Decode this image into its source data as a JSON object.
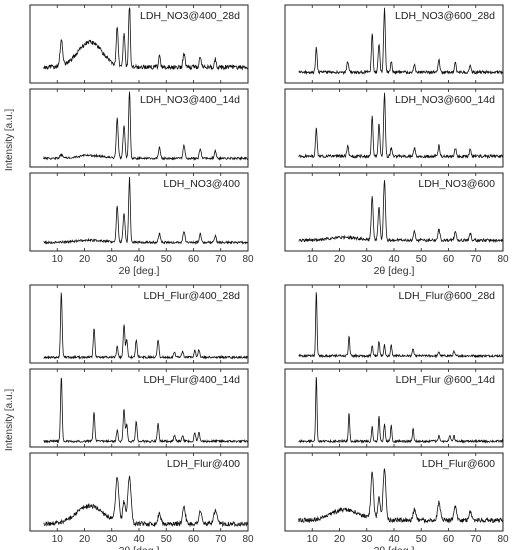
{
  "y_axis_label": "Intensity [a.u.]",
  "x_axis_label": "2θ [deg.]",
  "chart_data": [
    {
      "type": "line",
      "group": "left_top",
      "title": "LDH_NO3@400_28d",
      "xlim": [
        0,
        80
      ],
      "x_ticks": [
        10,
        20,
        30,
        40,
        50,
        60,
        70,
        80
      ],
      "show_x_ticks": false,
      "base": 0.22,
      "noise": 0.03,
      "seed": 1,
      "humps": [
        {
          "c": 22,
          "w": 4.5,
          "h": 0.35
        }
      ],
      "peaks": [
        {
          "x": 11.5,
          "h": 0.35,
          "w": 0.5
        },
        {
          "x": 32,
          "h": 0.55,
          "w": 0.35
        },
        {
          "x": 34.5,
          "h": 0.45,
          "w": 0.35
        },
        {
          "x": 36.5,
          "h": 0.9,
          "w": 0.3
        },
        {
          "x": 47.5,
          "h": 0.15,
          "w": 0.35
        },
        {
          "x": 56.5,
          "h": 0.2,
          "w": 0.35
        },
        {
          "x": 62.5,
          "h": 0.15,
          "w": 0.35
        },
        {
          "x": 68,
          "h": 0.12,
          "w": 0.35
        }
      ]
    },
    {
      "type": "line",
      "group": "left_top",
      "title": "LDH_NO3@400_14d",
      "xlim": [
        0,
        80
      ],
      "x_ticks": [
        10,
        20,
        30,
        40,
        50,
        60,
        70,
        80
      ],
      "show_x_ticks": false,
      "base": 0.12,
      "noise": 0.015,
      "seed": 2,
      "humps": [
        {
          "c": 22,
          "w": 5,
          "h": 0.04
        }
      ],
      "peaks": [
        {
          "x": 11.5,
          "h": 0.05,
          "w": 0.5
        },
        {
          "x": 32,
          "h": 0.55,
          "w": 0.35
        },
        {
          "x": 34.5,
          "h": 0.45,
          "w": 0.35
        },
        {
          "x": 36.5,
          "h": 0.95,
          "w": 0.3
        },
        {
          "x": 47.5,
          "h": 0.15,
          "w": 0.35
        },
        {
          "x": 56.5,
          "h": 0.18,
          "w": 0.35
        },
        {
          "x": 62.5,
          "h": 0.14,
          "w": 0.35
        },
        {
          "x": 68,
          "h": 0.1,
          "w": 0.35
        }
      ]
    },
    {
      "type": "line",
      "group": "left_top",
      "title": "LDH_NO3@400",
      "xlim": [
        0,
        80
      ],
      "x_ticks": [
        10,
        20,
        30,
        40,
        50,
        60,
        70,
        80
      ],
      "show_x_ticks": true,
      "base": 0.12,
      "noise": 0.015,
      "seed": 3,
      "humps": [
        {
          "c": 22,
          "w": 5,
          "h": 0.03
        }
      ],
      "peaks": [
        {
          "x": 32,
          "h": 0.5,
          "w": 0.35
        },
        {
          "x": 34.5,
          "h": 0.4,
          "w": 0.35
        },
        {
          "x": 36.5,
          "h": 0.9,
          "w": 0.3
        },
        {
          "x": 47.5,
          "h": 0.12,
          "w": 0.35
        },
        {
          "x": 56.5,
          "h": 0.15,
          "w": 0.35
        },
        {
          "x": 62.5,
          "h": 0.12,
          "w": 0.35
        },
        {
          "x": 68,
          "h": 0.09,
          "w": 0.35
        }
      ]
    },
    {
      "type": "line",
      "group": "right_top",
      "title": "LDH_NO3@600_28d",
      "xlim": [
        0,
        80
      ],
      "x_ticks": [
        10,
        20,
        30,
        40,
        50,
        60,
        70,
        80
      ],
      "show_x_ticks": false,
      "base": 0.15,
      "noise": 0.02,
      "seed": 4,
      "humps": [],
      "peaks": [
        {
          "x": 11.5,
          "h": 0.35,
          "w": 0.3
        },
        {
          "x": 23,
          "h": 0.15,
          "w": 0.3
        },
        {
          "x": 32,
          "h": 0.55,
          "w": 0.3
        },
        {
          "x": 34.5,
          "h": 0.4,
          "w": 0.3
        },
        {
          "x": 36.5,
          "h": 0.9,
          "w": 0.3
        },
        {
          "x": 39,
          "h": 0.15,
          "w": 0.3
        },
        {
          "x": 47.5,
          "h": 0.12,
          "w": 0.3
        },
        {
          "x": 56.5,
          "h": 0.18,
          "w": 0.3
        },
        {
          "x": 62.5,
          "h": 0.14,
          "w": 0.3
        },
        {
          "x": 68,
          "h": 0.1,
          "w": 0.3
        }
      ]
    },
    {
      "type": "line",
      "group": "right_top",
      "title": "LDH_NO3@600_14d",
      "xlim": [
        0,
        80
      ],
      "x_ticks": [
        10,
        20,
        30,
        40,
        50,
        60,
        70,
        80
      ],
      "show_x_ticks": false,
      "base": 0.15,
      "noise": 0.02,
      "seed": 5,
      "humps": [],
      "peaks": [
        {
          "x": 11.5,
          "h": 0.4,
          "w": 0.3
        },
        {
          "x": 23,
          "h": 0.15,
          "w": 0.3
        },
        {
          "x": 32,
          "h": 0.55,
          "w": 0.3
        },
        {
          "x": 34.5,
          "h": 0.45,
          "w": 0.3
        },
        {
          "x": 36.5,
          "h": 0.9,
          "w": 0.3
        },
        {
          "x": 39,
          "h": 0.12,
          "w": 0.3
        },
        {
          "x": 47.5,
          "h": 0.12,
          "w": 0.3
        },
        {
          "x": 56.5,
          "h": 0.16,
          "w": 0.3
        },
        {
          "x": 62.5,
          "h": 0.12,
          "w": 0.3
        },
        {
          "x": 68,
          "h": 0.1,
          "w": 0.3
        }
      ]
    },
    {
      "type": "line",
      "group": "right_top",
      "title": "LDH_NO3@600",
      "xlim": [
        0,
        80
      ],
      "x_ticks": [
        10,
        20,
        30,
        40,
        50,
        60,
        70,
        80
      ],
      "show_x_ticks": true,
      "base": 0.15,
      "noise": 0.02,
      "seed": 6,
      "humps": [
        {
          "c": 22,
          "w": 5,
          "h": 0.04
        }
      ],
      "peaks": [
        {
          "x": 32,
          "h": 0.6,
          "w": 0.35
        },
        {
          "x": 34.5,
          "h": 0.45,
          "w": 0.35
        },
        {
          "x": 36.5,
          "h": 0.85,
          "w": 0.35
        },
        {
          "x": 47.5,
          "h": 0.12,
          "w": 0.35
        },
        {
          "x": 56.5,
          "h": 0.15,
          "w": 0.35
        },
        {
          "x": 62.5,
          "h": 0.12,
          "w": 0.35
        },
        {
          "x": 68,
          "h": 0.1,
          "w": 0.35
        }
      ]
    },
    {
      "type": "line",
      "group": "left_bottom",
      "title": "LDH_Flur@400_28d",
      "xlim": [
        0,
        80
      ],
      "x_ticks": [
        10,
        20,
        30,
        40,
        50,
        60,
        70,
        80
      ],
      "show_x_ticks": false,
      "base": 0.08,
      "noise": 0.015,
      "seed": 7,
      "humps": [],
      "peaks": [
        {
          "x": 11.5,
          "h": 0.9,
          "w": 0.3
        },
        {
          "x": 23.5,
          "h": 0.4,
          "w": 0.3
        },
        {
          "x": 32,
          "h": 0.15,
          "w": 0.3
        },
        {
          "x": 34.5,
          "h": 0.45,
          "w": 0.3
        },
        {
          "x": 35.5,
          "h": 0.25,
          "w": 0.3
        },
        {
          "x": 39,
          "h": 0.25,
          "w": 0.3
        },
        {
          "x": 47,
          "h": 0.25,
          "w": 0.3
        },
        {
          "x": 53,
          "h": 0.08,
          "w": 0.3
        },
        {
          "x": 56,
          "h": 0.08,
          "w": 0.3
        },
        {
          "x": 60.5,
          "h": 0.1,
          "w": 0.3
        },
        {
          "x": 62,
          "h": 0.1,
          "w": 0.3
        }
      ]
    },
    {
      "type": "line",
      "group": "left_bottom",
      "title": "LDH_Flur@400_14d",
      "xlim": [
        0,
        80
      ],
      "x_ticks": [
        10,
        20,
        30,
        40,
        50,
        60,
        70,
        80
      ],
      "show_x_ticks": false,
      "base": 0.08,
      "noise": 0.015,
      "seed": 8,
      "humps": [],
      "peaks": [
        {
          "x": 11.5,
          "h": 0.9,
          "w": 0.3
        },
        {
          "x": 23.5,
          "h": 0.4,
          "w": 0.3
        },
        {
          "x": 32,
          "h": 0.15,
          "w": 0.3
        },
        {
          "x": 34.5,
          "h": 0.45,
          "w": 0.3
        },
        {
          "x": 35.5,
          "h": 0.25,
          "w": 0.3
        },
        {
          "x": 39,
          "h": 0.28,
          "w": 0.3
        },
        {
          "x": 47,
          "h": 0.25,
          "w": 0.3
        },
        {
          "x": 53,
          "h": 0.08,
          "w": 0.3
        },
        {
          "x": 56,
          "h": 0.08,
          "w": 0.3
        },
        {
          "x": 60.5,
          "h": 0.12,
          "w": 0.3
        },
        {
          "x": 62,
          "h": 0.12,
          "w": 0.3
        }
      ]
    },
    {
      "type": "line",
      "group": "left_bottom",
      "title": "LDH_Flur@400",
      "xlim": [
        0,
        80
      ],
      "x_ticks": [
        10,
        20,
        30,
        40,
        50,
        60,
        70,
        80
      ],
      "show_x_ticks": true,
      "base": 0.1,
      "noise": 0.03,
      "seed": 9,
      "humps": [
        {
          "c": 22,
          "w": 5,
          "h": 0.25
        }
      ],
      "peaks": [
        {
          "x": 32,
          "h": 0.6,
          "w": 0.6
        },
        {
          "x": 34.5,
          "h": 0.3,
          "w": 0.5
        },
        {
          "x": 36.5,
          "h": 0.65,
          "w": 0.6
        },
        {
          "x": 47.5,
          "h": 0.15,
          "w": 0.5
        },
        {
          "x": 56.5,
          "h": 0.25,
          "w": 0.5
        },
        {
          "x": 62.5,
          "h": 0.18,
          "w": 0.5
        },
        {
          "x": 68,
          "h": 0.18,
          "w": 0.6
        }
      ]
    },
    {
      "type": "line",
      "group": "right_bottom",
      "title": "LDH_Flur@600_28d",
      "xlim": [
        0,
        80
      ],
      "x_ticks": [
        10,
        20,
        30,
        40,
        50,
        60,
        70,
        80
      ],
      "show_x_ticks": false,
      "base": 0.1,
      "noise": 0.015,
      "seed": 10,
      "humps": [],
      "peaks": [
        {
          "x": 11.5,
          "h": 0.9,
          "w": 0.25
        },
        {
          "x": 23.5,
          "h": 0.28,
          "w": 0.25
        },
        {
          "x": 32,
          "h": 0.15,
          "w": 0.25
        },
        {
          "x": 34.5,
          "h": 0.2,
          "w": 0.25
        },
        {
          "x": 36.5,
          "h": 0.15,
          "w": 0.25
        },
        {
          "x": 39,
          "h": 0.15,
          "w": 0.25
        },
        {
          "x": 47,
          "h": 0.1,
          "w": 0.25
        },
        {
          "x": 56.5,
          "h": 0.06,
          "w": 0.25
        },
        {
          "x": 62,
          "h": 0.06,
          "w": 0.25
        }
      ]
    },
    {
      "type": "line",
      "group": "right_bottom",
      "title": "LDH_Flur @600_14d",
      "xlim": [
        0,
        80
      ],
      "x_ticks": [
        10,
        20,
        30,
        40,
        50,
        60,
        70,
        80
      ],
      "show_x_ticks": false,
      "base": 0.08,
      "noise": 0.015,
      "seed": 11,
      "humps": [],
      "peaks": [
        {
          "x": 11.5,
          "h": 0.9,
          "w": 0.25
        },
        {
          "x": 23.5,
          "h": 0.4,
          "w": 0.25
        },
        {
          "x": 32,
          "h": 0.2,
          "w": 0.25
        },
        {
          "x": 34.5,
          "h": 0.35,
          "w": 0.25
        },
        {
          "x": 36.5,
          "h": 0.25,
          "w": 0.25
        },
        {
          "x": 39,
          "h": 0.22,
          "w": 0.25
        },
        {
          "x": 47,
          "h": 0.18,
          "w": 0.25
        },
        {
          "x": 56.5,
          "h": 0.08,
          "w": 0.25
        },
        {
          "x": 60.5,
          "h": 0.08,
          "w": 0.25
        },
        {
          "x": 62,
          "h": 0.08,
          "w": 0.25
        }
      ]
    },
    {
      "type": "line",
      "group": "right_bottom",
      "title": "LDH_Flur@600",
      "xlim": [
        0,
        80
      ],
      "x_ticks": [
        10,
        20,
        30,
        40,
        50,
        60,
        70,
        80
      ],
      "show_x_ticks": true,
      "base": 0.15,
      "noise": 0.03,
      "seed": 12,
      "humps": [
        {
          "c": 22,
          "w": 5,
          "h": 0.15
        }
      ],
      "peaks": [
        {
          "x": 32,
          "h": 0.65,
          "w": 0.5
        },
        {
          "x": 34.5,
          "h": 0.3,
          "w": 0.5
        },
        {
          "x": 36.5,
          "h": 0.7,
          "w": 0.5
        },
        {
          "x": 47.5,
          "h": 0.15,
          "w": 0.5
        },
        {
          "x": 56.5,
          "h": 0.25,
          "w": 0.5
        },
        {
          "x": 62.5,
          "h": 0.18,
          "w": 0.5
        },
        {
          "x": 68,
          "h": 0.12,
          "w": 0.5
        }
      ]
    }
  ]
}
